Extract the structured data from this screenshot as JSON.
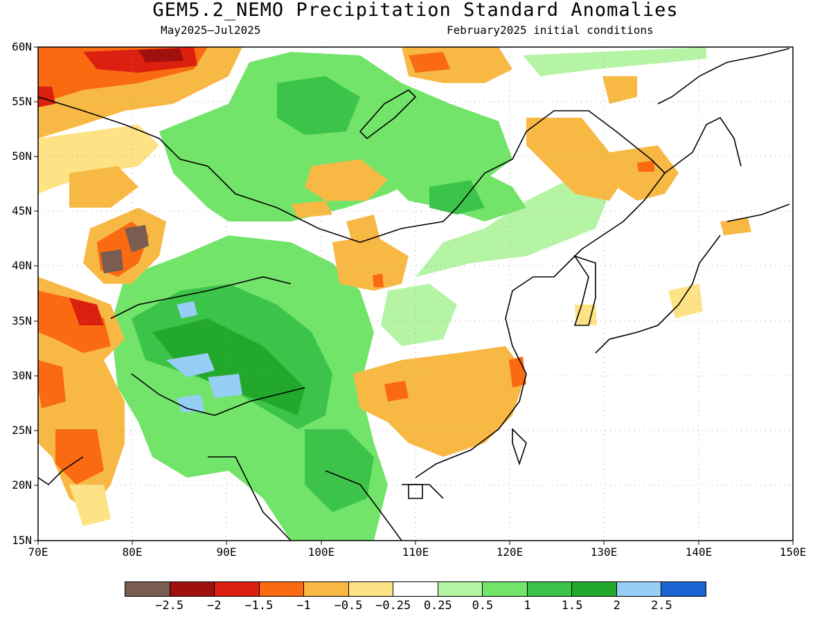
{
  "title": "GEM5.2_NEMO Precipitation Standard Anomalies",
  "subtitle_left": "May2025–Jul2025",
  "subtitle_right": "February2025 initial conditions",
  "lat_labels": [
    "60N",
    "55N",
    "50N",
    "45N",
    "40N",
    "35N",
    "30N",
    "25N",
    "20N",
    "15N"
  ],
  "lon_labels": [
    "70E",
    "80E",
    "90E",
    "100E",
    "110E",
    "120E",
    "130E",
    "140E",
    "150E"
  ],
  "colorbar": {
    "colors": [
      "#7a5c50",
      "#a0100e",
      "#dc2010",
      "#fa6a10",
      "#f8b844",
      "#fde286",
      "#ffffff",
      "#b4f4a4",
      "#72e46a",
      "#3cc44a",
      "#22a82a",
      "#96cef6",
      "#1c64d4"
    ],
    "labels": [
      "−2.5",
      "−2",
      "−1.5",
      "−1",
      "−0.5",
      "−0.25",
      "0.25",
      "0.5",
      "1",
      "1.5",
      "2",
      "2.5"
    ]
  },
  "legend": {
    "position": "bottom"
  }
}
